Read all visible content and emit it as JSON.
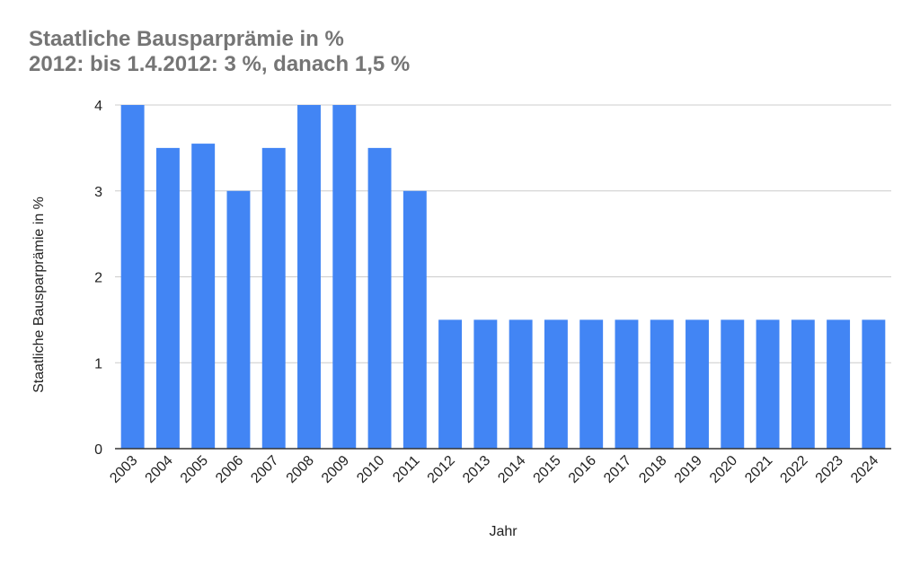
{
  "chart_data": {
    "type": "bar",
    "title": "Staatliche Bausparprämie in %",
    "subtitle": "2012: bis 1.4.2012: 3 %, danach 1,5 %",
    "xlabel": "Jahr",
    "ylabel": "Staatliche Bausparprämie in %",
    "categories": [
      "2003",
      "2004",
      "2005",
      "2006",
      "2007",
      "2008",
      "2009",
      "2010",
      "2011",
      "2012",
      "2013",
      "2014",
      "2015",
      "2016",
      "2017",
      "2018",
      "2019",
      "2020",
      "2021",
      "2022",
      "2023",
      "2024"
    ],
    "values": [
      4,
      3.5,
      3.55,
      3,
      3.5,
      4,
      4,
      3.5,
      3,
      1.5,
      1.5,
      1.5,
      1.5,
      1.5,
      1.5,
      1.5,
      1.5,
      1.5,
      1.5,
      1.5,
      1.5,
      1.5
    ],
    "y_ticks": [
      "0",
      "1",
      "2",
      "3",
      "4"
    ],
    "ylim": [
      0,
      4
    ],
    "grid": true,
    "bar_color": "#4285f4",
    "grid_color": "#cccccc",
    "axis_color": "#333333"
  }
}
